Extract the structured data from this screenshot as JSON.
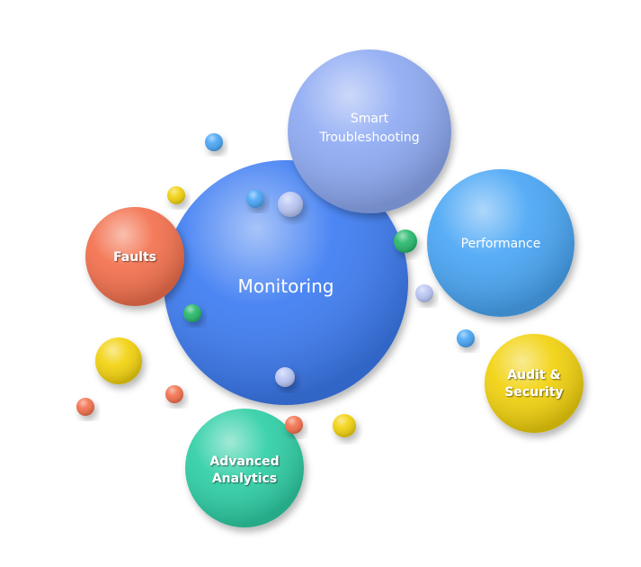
{
  "diagram": {
    "center": {
      "label": "Monitoring",
      "color": "#3d7cf2"
    },
    "nodes": [
      {
        "id": "smart-troubleshooting",
        "lines": [
          "Smart",
          "Troubleshooting"
        ],
        "color": "#8eaaf3"
      },
      {
        "id": "performance",
        "lines": [
          "Performance"
        ],
        "color": "#4aa6f5"
      },
      {
        "id": "faults",
        "lines": [
          "Faults"
        ],
        "color": "#f36f4d"
      },
      {
        "id": "audit-security",
        "lines": [
          "Audit &",
          "Security"
        ],
        "color": "#f2d20a"
      },
      {
        "id": "advanced-analytics",
        "lines": [
          "Advanced",
          "Analytics"
        ],
        "color": "#2ecfa5"
      }
    ],
    "dots": [
      {
        "id": "dot-blue-1",
        "color": "#4aa6f5"
      },
      {
        "id": "dot-yellow-1",
        "color": "#f2d20a"
      },
      {
        "id": "dot-blue-2",
        "color": "#4aa6f5"
      },
      {
        "id": "dot-lavender-1",
        "color": "#b9c6f5"
      },
      {
        "id": "dot-green-1",
        "color": "#28b86a"
      },
      {
        "id": "dot-green-2",
        "color": "#28b86a"
      },
      {
        "id": "dot-lavender-2",
        "color": "#b9c6f5"
      },
      {
        "id": "dot-blue-3",
        "color": "#4aa6f5"
      },
      {
        "id": "dot-yellow-big",
        "color": "#f2d20a"
      },
      {
        "id": "dot-pink-1",
        "color": "#f36f4d"
      },
      {
        "id": "dot-orange-1",
        "color": "#f36f4d"
      },
      {
        "id": "dot-lavender-3",
        "color": "#b9c6f5"
      },
      {
        "id": "dot-orange-2",
        "color": "#f36f4d"
      },
      {
        "id": "dot-yellow-2",
        "color": "#f2d20a"
      }
    ]
  }
}
